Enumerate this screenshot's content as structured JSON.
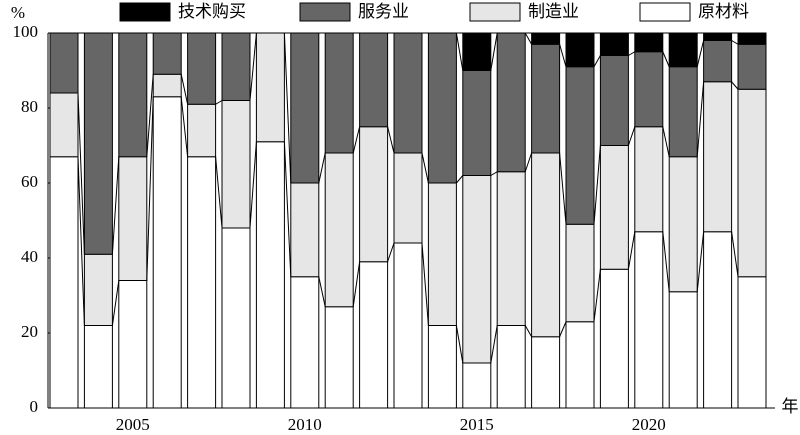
{
  "chart_data": {
    "type": "stacked_bar",
    "y_label": "%",
    "x_label": "年",
    "categories": [
      null,
      null,
      "2005",
      null,
      null,
      null,
      null,
      "2010",
      null,
      null,
      null,
      null,
      "2015",
      null,
      null,
      null,
      null,
      "2020",
      null,
      null,
      null
    ],
    "series": [
      {
        "name": "原材料",
        "color": "#ffffff",
        "values": [
          67,
          22,
          34,
          83,
          67,
          48,
          71,
          35,
          27,
          39,
          44,
          22,
          12,
          22,
          19,
          23,
          37,
          47,
          31,
          47,
          35
        ]
      },
      {
        "name": "制造业",
        "color": "#e6e6e6",
        "values": [
          17,
          19,
          33,
          6,
          14,
          34,
          29,
          25,
          41,
          36,
          24,
          38,
          50,
          41,
          49,
          26,
          33,
          28,
          36,
          40,
          50
        ]
      },
      {
        "name": "服务业",
        "color": "#666666",
        "values": [
          16,
          59,
          33,
          11,
          19,
          18,
          0,
          40,
          32,
          25,
          32,
          40,
          28,
          37,
          29,
          42,
          24,
          20,
          24,
          11,
          12
        ]
      },
      {
        "name": "技术购买",
        "color": "#000000",
        "values": [
          0,
          0,
          0,
          0,
          0,
          0,
          0,
          0,
          0,
          0,
          0,
          0,
          10,
          0,
          3,
          9,
          6,
          5,
          9,
          2,
          3
        ]
      }
    ],
    "ylim": [
      0,
      100
    ],
    "yticks": [
      0,
      20,
      40,
      60,
      80,
      100
    ]
  }
}
